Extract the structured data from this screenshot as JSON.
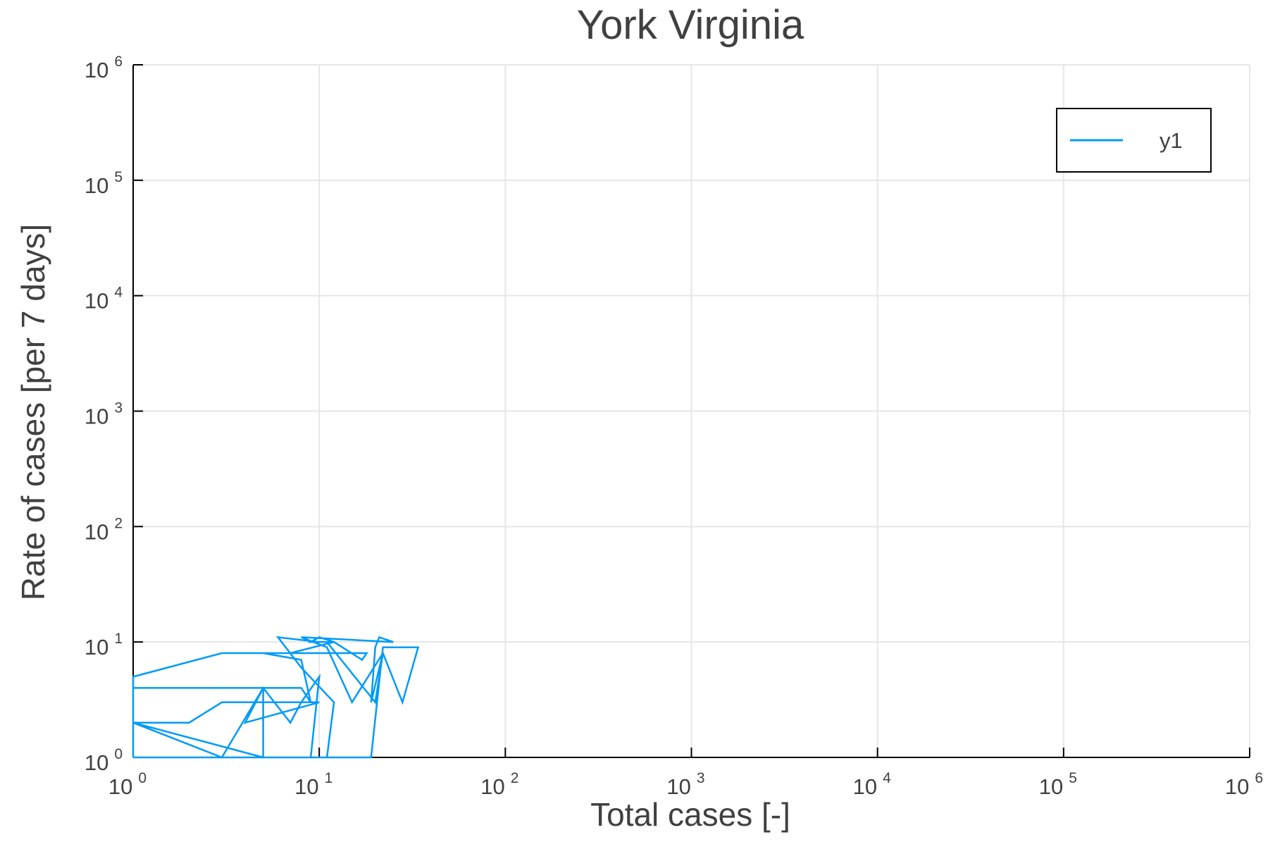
{
  "chart_data": {
    "type": "line",
    "title": "York Virginia",
    "xlabel": "Total cases [-]",
    "ylabel": "Rate of cases [per 7 days]",
    "xscale": "log",
    "yscale": "log",
    "xlim": [
      1,
      1000000
    ],
    "ylim": [
      1,
      1000000
    ],
    "grid": true,
    "legend_position": "top-right",
    "x_ticks": [
      {
        "base": "10",
        "exp": "0",
        "value": 1
      },
      {
        "base": "10",
        "exp": "1",
        "value": 10
      },
      {
        "base": "10",
        "exp": "2",
        "value": 100
      },
      {
        "base": "10",
        "exp": "3",
        "value": 1000
      },
      {
        "base": "10",
        "exp": "4",
        "value": 10000
      },
      {
        "base": "10",
        "exp": "5",
        "value": 100000
      },
      {
        "base": "10",
        "exp": "6",
        "value": 1000000
      }
    ],
    "y_ticks": [
      {
        "base": "10",
        "exp": "0",
        "value": 1
      },
      {
        "base": "10",
        "exp": "1",
        "value": 10
      },
      {
        "base": "10",
        "exp": "2",
        "value": 100
      },
      {
        "base": "10",
        "exp": "3",
        "value": 1000
      },
      {
        "base": "10",
        "exp": "4",
        "value": 10000
      },
      {
        "base": "10",
        "exp": "5",
        "value": 100000
      },
      {
        "base": "10",
        "exp": "6",
        "value": 1000000
      }
    ],
    "series": [
      {
        "name": "y1",
        "color": "#009af9",
        "x": [
          1,
          1,
          5,
          5,
          1,
          3,
          5,
          8,
          9,
          8,
          5,
          3,
          1,
          1,
          1,
          2,
          3,
          8,
          10,
          4,
          5,
          7,
          8,
          10,
          9,
          11,
          12,
          8,
          6,
          10,
          12,
          7,
          5,
          18,
          17,
          12,
          10,
          9,
          11,
          20,
          22,
          15,
          11,
          8,
          25,
          21,
          20,
          19,
          22,
          28,
          34,
          30,
          22,
          19,
          12,
          11,
          11,
          9,
          1
        ],
        "y": [
          1,
          4,
          4,
          1,
          2,
          1,
          4,
          4,
          3,
          7,
          8,
          8,
          5,
          4,
          2,
          2,
          3,
          3,
          3,
          2,
          4,
          2,
          3,
          5,
          1,
          1,
          3,
          6,
          11,
          10,
          10,
          8,
          8,
          8,
          7,
          10,
          11,
          10,
          10,
          3,
          8,
          3,
          9,
          11,
          10,
          11,
          9,
          3,
          8,
          3,
          9,
          9,
          9,
          1,
          1,
          1,
          1,
          1,
          1
        ]
      }
    ]
  }
}
